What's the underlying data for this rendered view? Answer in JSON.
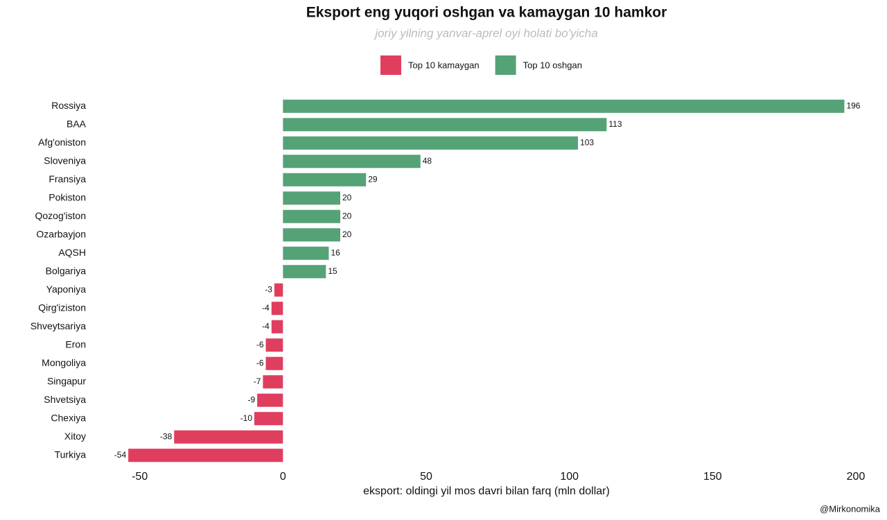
{
  "chart_data": {
    "type": "barh",
    "title": "Eksport eng yuqori oshgan va kamaygan  10 hamkor",
    "subtitle": "joriy yilning yanvar-aprel oyi holati bo'yicha",
    "xlabel": "eksport: oldingi yil mos davri bilan farq (mln dollar)",
    "source": "@Mirkonomika",
    "categories": [
      "Rossiya",
      "BAA",
      "Afg'oniston",
      "Sloveniya",
      "Fransiya",
      "Pokiston",
      "Qozog'iston",
      "Ozarbayjon",
      "AQSH",
      "Bolgariya",
      "Yaponiya",
      "Qirg'iziston",
      "Shveytsariya",
      "Eron",
      "Mongoliya",
      "Singapur",
      "Shvetsiya",
      "Chexiya",
      "Xitoy",
      "Turkiya"
    ],
    "series": [
      {
        "name": "Top 10 kamaygan",
        "color": "#e03e5f",
        "values": [
          null,
          null,
          null,
          null,
          null,
          null,
          null,
          null,
          null,
          null,
          -3,
          -4,
          -4,
          -6,
          -6,
          -7,
          -9,
          -10,
          -38,
          -54
        ]
      },
      {
        "name": "Top 10 oshgan",
        "color": "#55a277",
        "values": [
          196,
          113,
          103,
          48,
          29,
          20,
          20,
          20,
          16,
          15,
          null,
          null,
          null,
          null,
          null,
          null,
          null,
          null,
          null,
          null
        ]
      }
    ],
    "xlim": [
      -55,
      200
    ],
    "xticks": [
      -50,
      0,
      50,
      100,
      150,
      200
    ],
    "legend": "top"
  }
}
